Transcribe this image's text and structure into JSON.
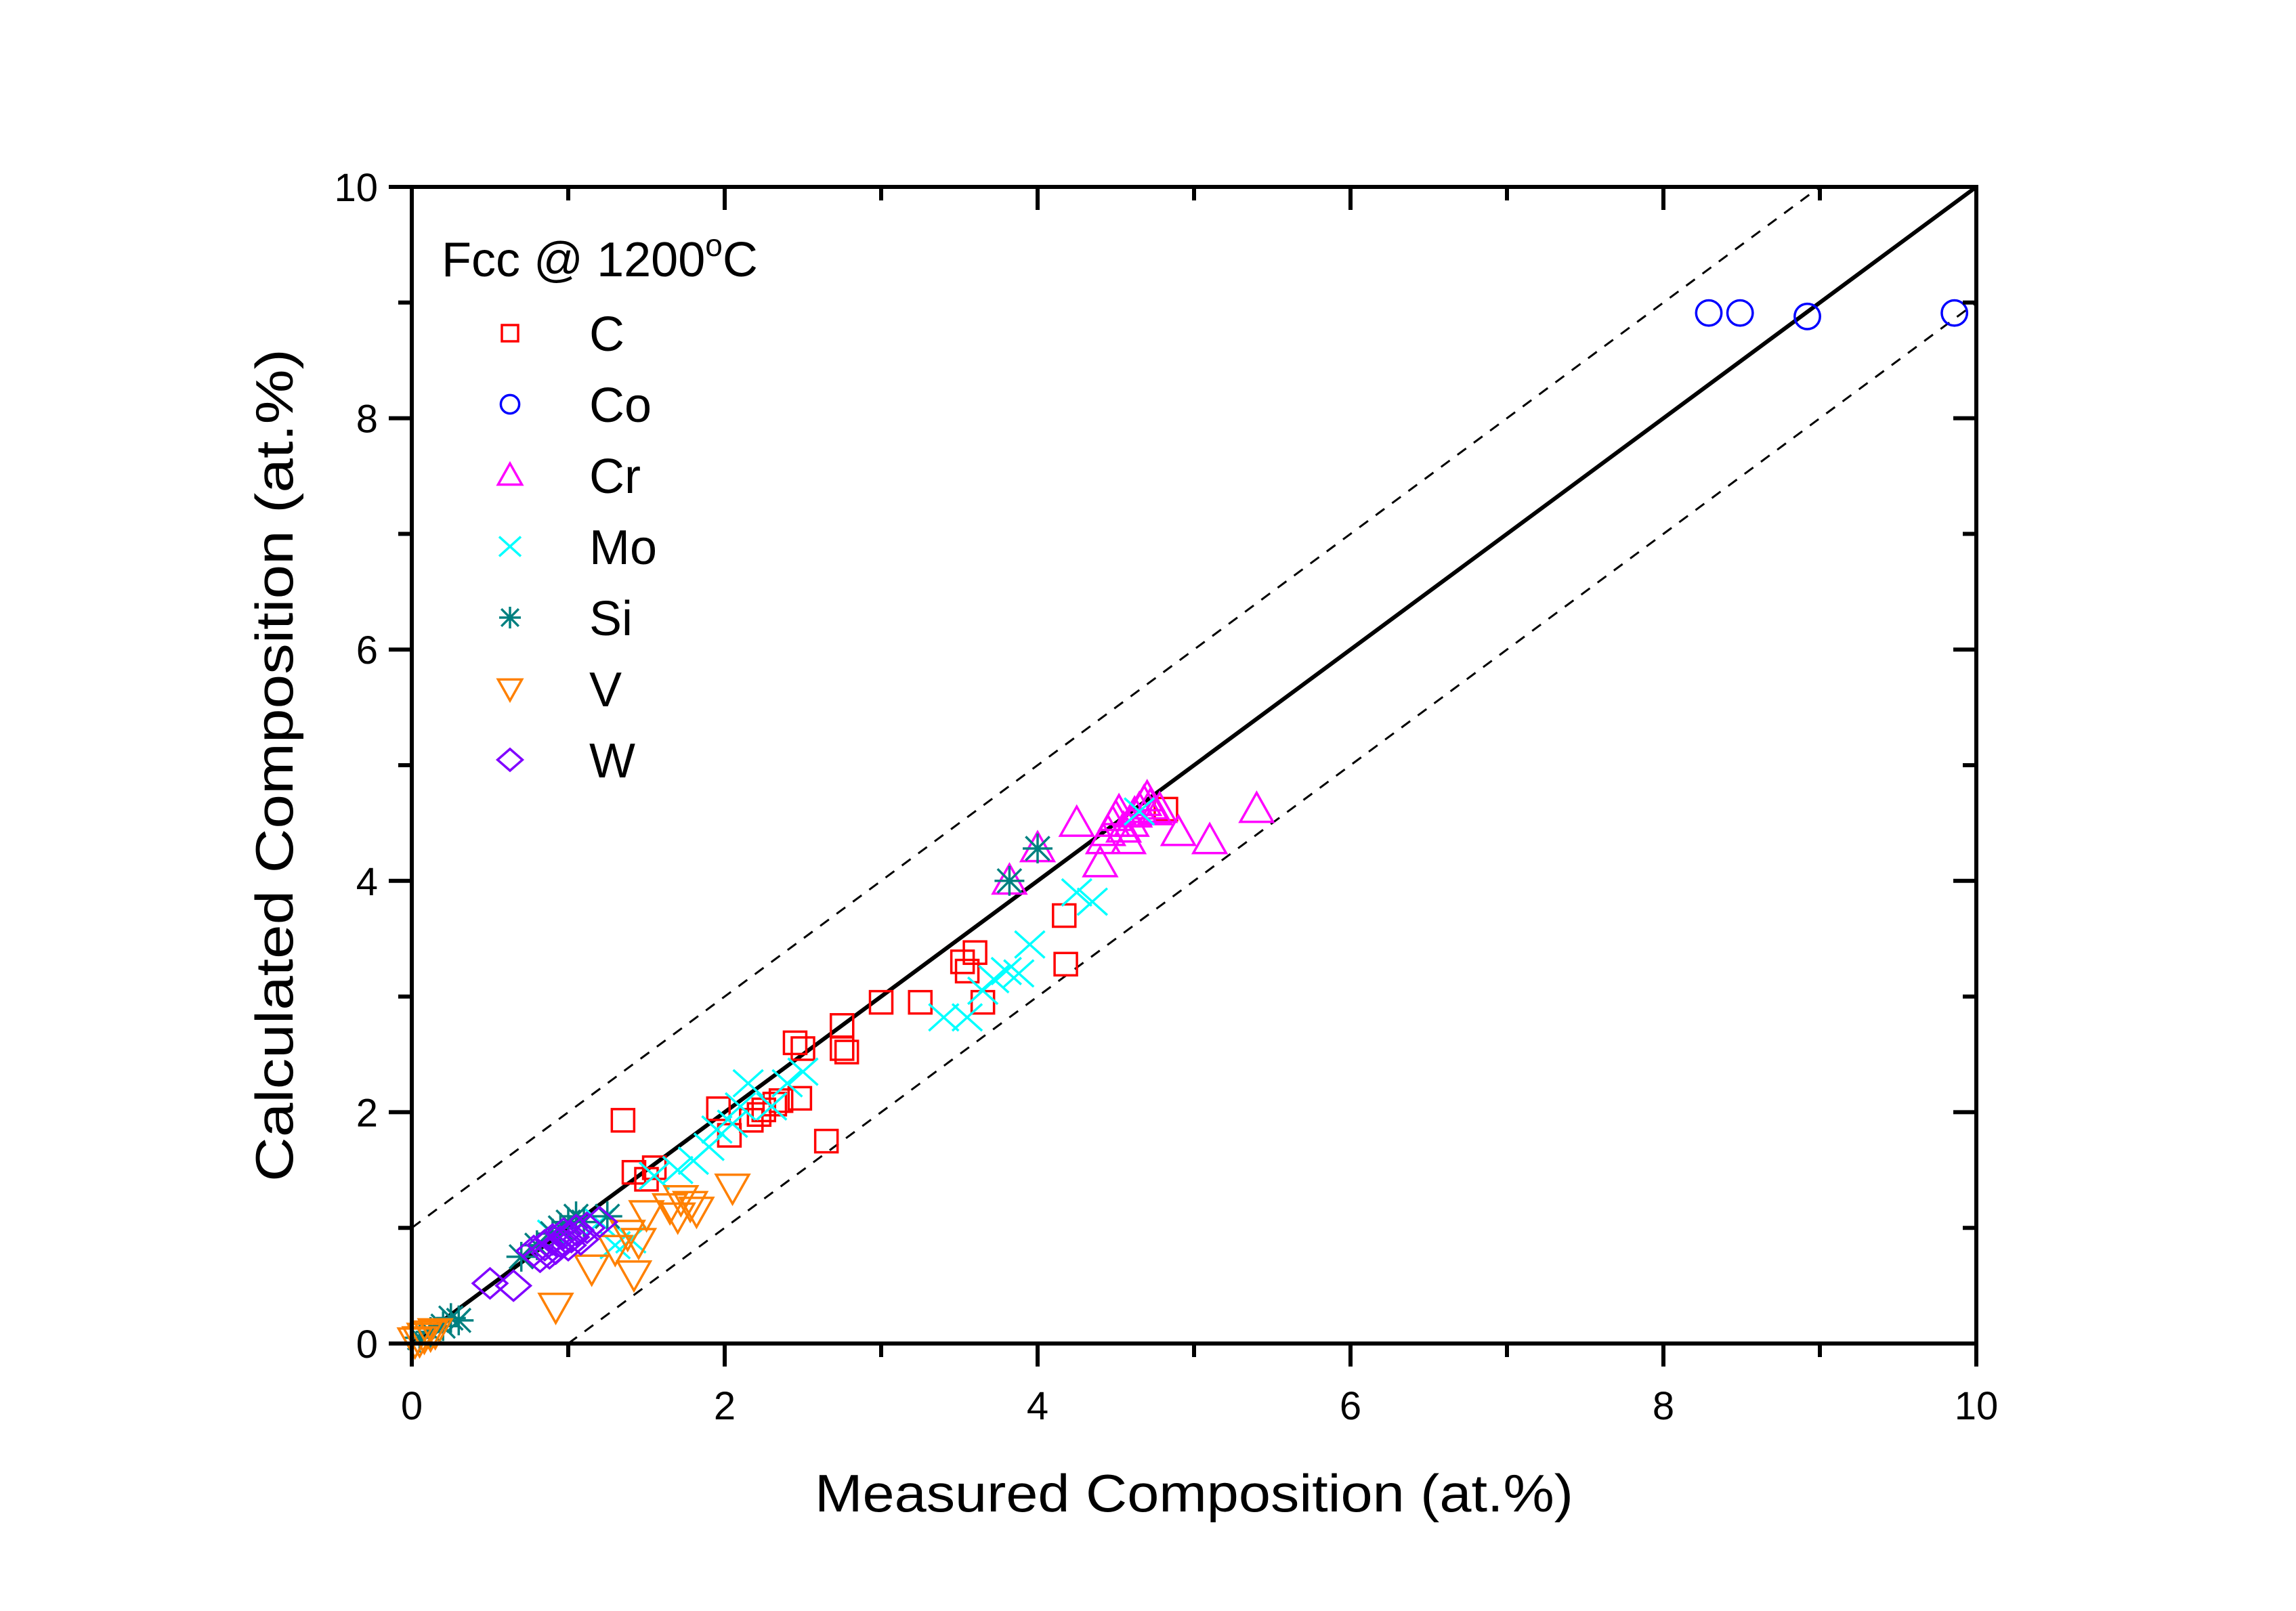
{
  "chart_data": {
    "type": "scatter",
    "title": "",
    "xlabel": "Measured Composition (at.%)",
    "ylabel": "Calculated Composition (at.%)",
    "xlim": [
      0,
      10
    ],
    "ylim": [
      0,
      10
    ],
    "xticks": [
      0,
      2,
      4,
      6,
      8,
      10
    ],
    "yticks": [
      0,
      2,
      4,
      6,
      8,
      10
    ],
    "xtick_labels": [
      "0",
      "2",
      "4",
      "6",
      "8",
      "10"
    ],
    "ytick_labels": [
      "0",
      "2",
      "4",
      "6",
      "8",
      "10"
    ],
    "grid": false,
    "legend": {
      "title": "Fcc @ 1200",
      "title_superscript": "o",
      "title_suffix": "C",
      "placement": "top-left"
    },
    "reference_lines": [
      {
        "name": "y = x",
        "style": "solid",
        "offset": 0
      },
      {
        "name": "y = x + 1",
        "style": "dashed",
        "offset": 1
      },
      {
        "name": "y = x - 1",
        "style": "dashed",
        "offset": -1
      }
    ],
    "series": [
      {
        "name": "C",
        "marker": "square",
        "color": "#ff0000",
        "points": [
          [
            1.35,
            1.93
          ],
          [
            1.42,
            1.48
          ],
          [
            1.5,
            1.42
          ],
          [
            1.55,
            1.52
          ],
          [
            1.96,
            2.03
          ],
          [
            2.03,
            1.8
          ],
          [
            2.17,
            1.93
          ],
          [
            2.22,
            1.98
          ],
          [
            2.25,
            2.02
          ],
          [
            2.32,
            2.07
          ],
          [
            2.36,
            2.1
          ],
          [
            2.45,
            2.6
          ],
          [
            2.48,
            2.12
          ],
          [
            2.5,
            2.55
          ],
          [
            2.65,
            1.75
          ],
          [
            2.75,
            2.75
          ],
          [
            2.75,
            2.55
          ],
          [
            2.78,
            2.52
          ],
          [
            3.0,
            2.95
          ],
          [
            3.25,
            2.95
          ],
          [
            3.52,
            3.3
          ],
          [
            3.55,
            3.22
          ],
          [
            3.6,
            3.38
          ],
          [
            3.65,
            2.95
          ],
          [
            4.17,
            3.7
          ],
          [
            4.18,
            3.28
          ],
          [
            4.82,
            4.62
          ]
        ]
      },
      {
        "name": "Co",
        "marker": "circle",
        "color": "#0000ff",
        "points": [
          [
            8.29,
            8.91
          ],
          [
            8.49,
            8.91
          ],
          [
            8.92,
            8.88
          ],
          [
            9.86,
            8.91
          ]
        ]
      },
      {
        "name": "Cr",
        "marker": "triangle-up",
        "color": "#ff00ff",
        "points": [
          [
            3.82,
            4.0
          ],
          [
            4.0,
            4.28
          ],
          [
            4.25,
            4.5
          ],
          [
            4.4,
            4.15
          ],
          [
            4.42,
            4.35
          ],
          [
            4.45,
            4.42
          ],
          [
            4.48,
            4.5
          ],
          [
            4.5,
            4.55
          ],
          [
            4.52,
            4.6
          ],
          [
            4.55,
            4.45
          ],
          [
            4.58,
            4.35
          ],
          [
            4.6,
            4.5
          ],
          [
            4.62,
            4.58
          ],
          [
            4.65,
            4.62
          ],
          [
            4.68,
            4.68
          ],
          [
            4.7,
            4.72
          ],
          [
            4.72,
            4.65
          ],
          [
            4.75,
            4.6
          ],
          [
            4.78,
            4.62
          ],
          [
            4.9,
            4.42
          ],
          [
            5.1,
            4.35
          ],
          [
            5.4,
            4.62
          ]
        ]
      },
      {
        "name": "Mo",
        "marker": "x",
        "color": "#00ffff",
        "points": [
          [
            0.9,
            0.95
          ],
          [
            1.2,
            1.05
          ],
          [
            1.3,
            0.85
          ],
          [
            1.4,
            0.9
          ],
          [
            1.55,
            1.45
          ],
          [
            1.7,
            1.5
          ],
          [
            1.8,
            1.58
          ],
          [
            1.9,
            1.7
          ],
          [
            1.95,
            1.85
          ],
          [
            2.05,
            1.9
          ],
          [
            2.1,
            2.05
          ],
          [
            2.15,
            2.25
          ],
          [
            2.3,
            2.05
          ],
          [
            2.4,
            2.25
          ],
          [
            2.5,
            2.35
          ],
          [
            3.4,
            2.82
          ],
          [
            3.55,
            2.82
          ],
          [
            3.65,
            3.05
          ],
          [
            3.72,
            3.15
          ],
          [
            3.8,
            3.22
          ],
          [
            3.88,
            3.2
          ],
          [
            3.95,
            3.45
          ],
          [
            4.25,
            3.9
          ],
          [
            4.35,
            3.82
          ],
          [
            4.65,
            4.6
          ]
        ]
      },
      {
        "name": "Si",
        "marker": "asterisk",
        "color": "#008080",
        "points": [
          [
            0.05,
            0.05
          ],
          [
            0.12,
            0.1
          ],
          [
            0.2,
            0.15
          ],
          [
            0.25,
            0.22
          ],
          [
            0.3,
            0.2
          ],
          [
            0.7,
            0.75
          ],
          [
            0.8,
            0.85
          ],
          [
            0.9,
            0.95
          ],
          [
            0.95,
            1.0
          ],
          [
            1.0,
            1.05
          ],
          [
            1.05,
            1.1
          ],
          [
            1.1,
            1.05
          ],
          [
            1.25,
            1.1
          ],
          [
            3.82,
            4.0
          ],
          [
            4.0,
            4.28
          ]
        ]
      },
      {
        "name": "V",
        "marker": "triangle-down",
        "color": "#ff8000",
        "points": [
          [
            0.02,
            0.02
          ],
          [
            0.05,
            0.03
          ],
          [
            0.08,
            0.06
          ],
          [
            0.12,
            0.08
          ],
          [
            0.15,
            0.1
          ],
          [
            0.92,
            0.32
          ],
          [
            1.15,
            0.65
          ],
          [
            1.3,
            0.82
          ],
          [
            1.38,
            0.95
          ],
          [
            1.42,
            0.6
          ],
          [
            1.45,
            0.88
          ],
          [
            1.5,
            1.12
          ],
          [
            1.65,
            1.18
          ],
          [
            1.7,
            1.1
          ],
          [
            1.72,
            1.25
          ],
          [
            1.78,
            1.2
          ],
          [
            1.82,
            1.15
          ],
          [
            2.05,
            1.35
          ]
        ]
      },
      {
        "name": "W",
        "marker": "diamond",
        "color": "#8000ff",
        "points": [
          [
            0.5,
            0.52
          ],
          [
            0.65,
            0.5
          ],
          [
            0.78,
            0.8
          ],
          [
            0.82,
            0.75
          ],
          [
            0.85,
            0.85
          ],
          [
            0.88,
            0.78
          ],
          [
            0.9,
            0.9
          ],
          [
            0.92,
            0.82
          ],
          [
            0.95,
            0.88
          ],
          [
            0.97,
            0.95
          ],
          [
            1.0,
            0.85
          ],
          [
            1.02,
            0.92
          ],
          [
            1.05,
            0.98
          ],
          [
            1.08,
            0.9
          ],
          [
            1.12,
            1.0
          ],
          [
            1.2,
            1.05
          ]
        ]
      }
    ]
  }
}
